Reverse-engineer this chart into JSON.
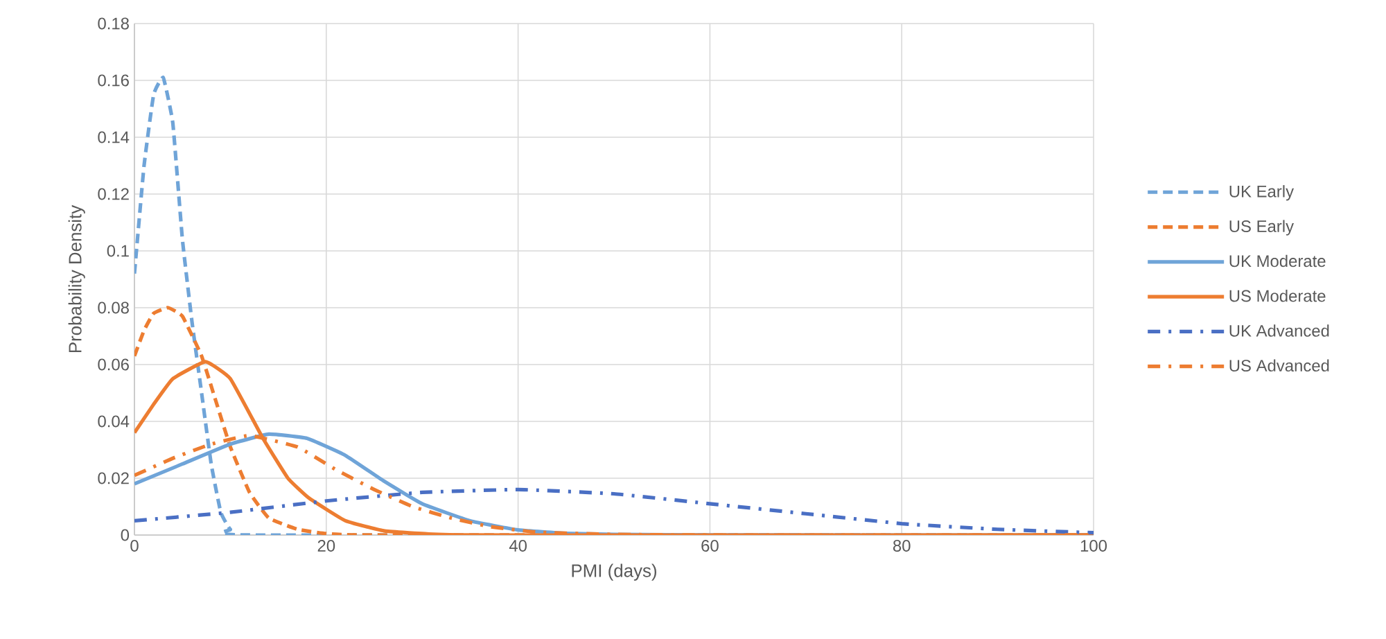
{
  "chart_data": {
    "type": "line",
    "xlabel": "PMI (days)",
    "ylabel": "Probability Density",
    "xlim": [
      0,
      100
    ],
    "xticks": [
      0,
      20,
      40,
      60,
      80,
      100
    ],
    "ylim": [
      0,
      0.18
    ],
    "yticks": [
      0,
      0.02,
      0.04,
      0.06,
      0.08,
      0.1,
      0.12,
      0.14,
      0.16,
      0.18
    ],
    "grid": true,
    "legend": "right",
    "series": [
      {
        "name": "UK Early",
        "color": "#6fa4d8",
        "line_style": "dashed",
        "x": [
          0,
          1,
          2,
          3,
          4,
          5,
          6,
          7,
          8,
          9,
          10,
          12,
          100
        ],
        "values": [
          0.092,
          0.13,
          0.155,
          0.161,
          0.145,
          0.104,
          0.075,
          0.05,
          0.025,
          0.008,
          0.002,
          0,
          0
        ]
      },
      {
        "name": "US Early",
        "color": "#ed7d31",
        "line_style": "dashed",
        "x": [
          0,
          1,
          2,
          3.5,
          5,
          7,
          8.5,
          10,
          12,
          14,
          17,
          20,
          25,
          100
        ],
        "values": [
          0.063,
          0.072,
          0.078,
          0.08,
          0.077,
          0.063,
          0.047,
          0.031,
          0.015,
          0.006,
          0.002,
          0.0005,
          0,
          0
        ]
      },
      {
        "name": "UK Moderate",
        "color": "#6fa4d8",
        "line_style": "solid",
        "x": [
          0,
          5,
          10,
          14,
          18,
          22,
          26,
          30,
          35,
          40,
          45,
          50,
          60,
          100
        ],
        "values": [
          0.018,
          0.025,
          0.032,
          0.0355,
          0.034,
          0.028,
          0.019,
          0.011,
          0.005,
          0.0018,
          0.0006,
          0.0002,
          0,
          0
        ]
      },
      {
        "name": "US Moderate",
        "color": "#ed7d31",
        "line_style": "solid",
        "x": [
          0,
          2,
          4,
          7.4,
          10,
          13.4,
          16,
          18.2,
          22,
          26,
          30,
          35,
          100
        ],
        "values": [
          0.036,
          0.046,
          0.055,
          0.061,
          0.055,
          0.034,
          0.02,
          0.013,
          0.005,
          0.0015,
          0.0005,
          0,
          0
        ]
      },
      {
        "name": "UK Advanced",
        "color": "#4a6fc4",
        "line_style": "dashdot",
        "x": [
          0,
          10,
          20,
          30,
          40,
          50,
          60,
          70,
          80,
          90,
          100
        ],
        "values": [
          0.005,
          0.008,
          0.012,
          0.015,
          0.016,
          0.0145,
          0.011,
          0.0075,
          0.004,
          0.002,
          0.0008
        ]
      },
      {
        "name": "US Advanced",
        "color": "#ed7d31",
        "line_style": "dashdot",
        "x": [
          0,
          4,
          8,
          12,
          17,
          21,
          25,
          29,
          33,
          37,
          42,
          50,
          60,
          100
        ],
        "values": [
          0.021,
          0.027,
          0.032,
          0.035,
          0.031,
          0.023,
          0.016,
          0.01,
          0.006,
          0.003,
          0.001,
          0.0002,
          0,
          0
        ]
      }
    ]
  }
}
